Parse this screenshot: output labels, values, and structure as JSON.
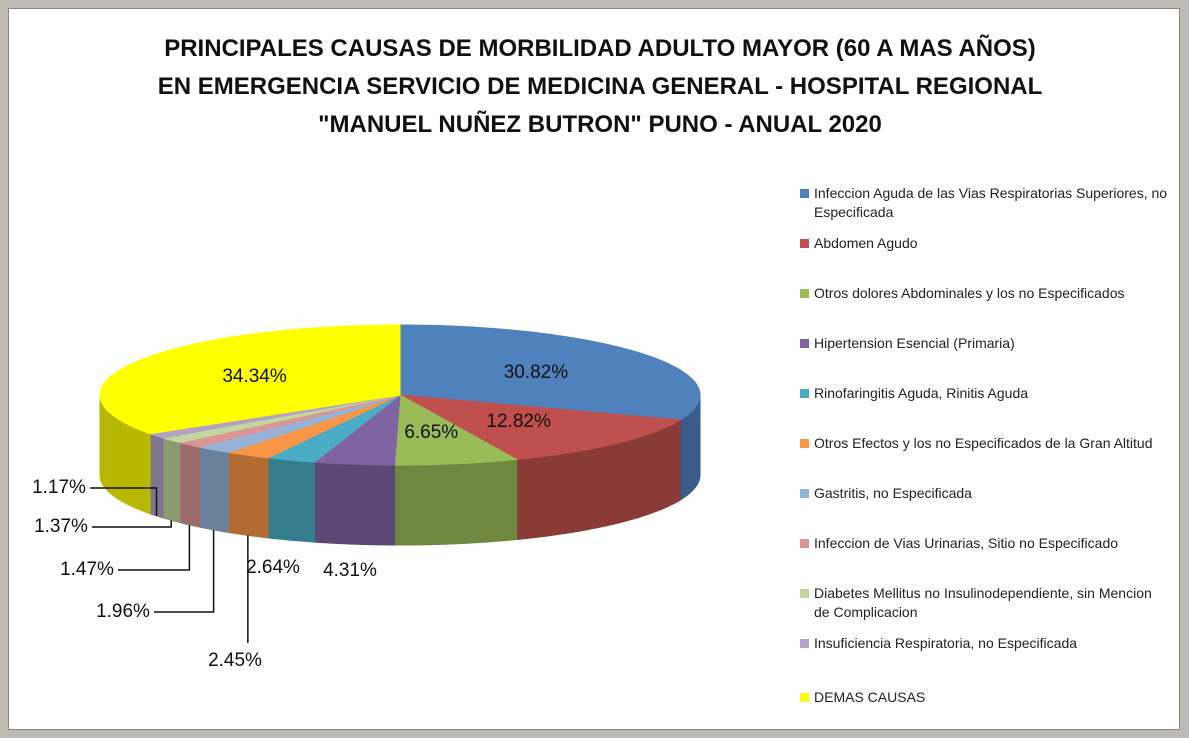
{
  "chart_data": {
    "type": "pie3d",
    "title": "PRINCIPALES CAUSAS DE MORBILIDAD ADULTO MAYOR (60 A MAS AÑOS) EN EMERGENCIA SERVICIO DE MEDICINA GENERAL - HOSPITAL REGIONAL \"MANUEL NUÑEZ BUTRON\" PUNO - ANUAL 2020",
    "categories": [
      "Infeccion Aguda de las Vias Respiratorias Superiores, no Especificada",
      "Abdomen Agudo",
      "Otros dolores Abdominales y los no Especificados",
      "Hipertension Esencial (Primaria)",
      "Rinofaringitis Aguda, Rinitis Aguda",
      "Otros Efectos y los no Especificados de la Gran Altitud",
      "Gastritis, no Especificada",
      "Infeccion de Vias Urinarias, Sitio no Especificado",
      "Diabetes Mellitus no Insulinodependiente, sin Mencion de Complicacion",
      "Insuficiencia Respiratoria, no Especificada",
      "DEMAS CAUSAS"
    ],
    "values": [
      30.82,
      12.82,
      6.65,
      4.31,
      2.64,
      2.45,
      1.96,
      1.47,
      1.37,
      1.17,
      34.34
    ],
    "value_labels": [
      "30.82%",
      "12.82%",
      "6.65%",
      "4.31%",
      "2.64%",
      "2.45%",
      "1.96%",
      "1.47%",
      "1.37%",
      "1.17%",
      "34.34%"
    ],
    "colors": [
      "#4f81bd",
      "#c0504d",
      "#9bbb59",
      "#8064a2",
      "#4bacc6",
      "#f79646",
      "#95b3d7",
      "#d99694",
      "#c3d69b",
      "#b2a2c7",
      "#ffff00"
    ],
    "legend": "right"
  }
}
